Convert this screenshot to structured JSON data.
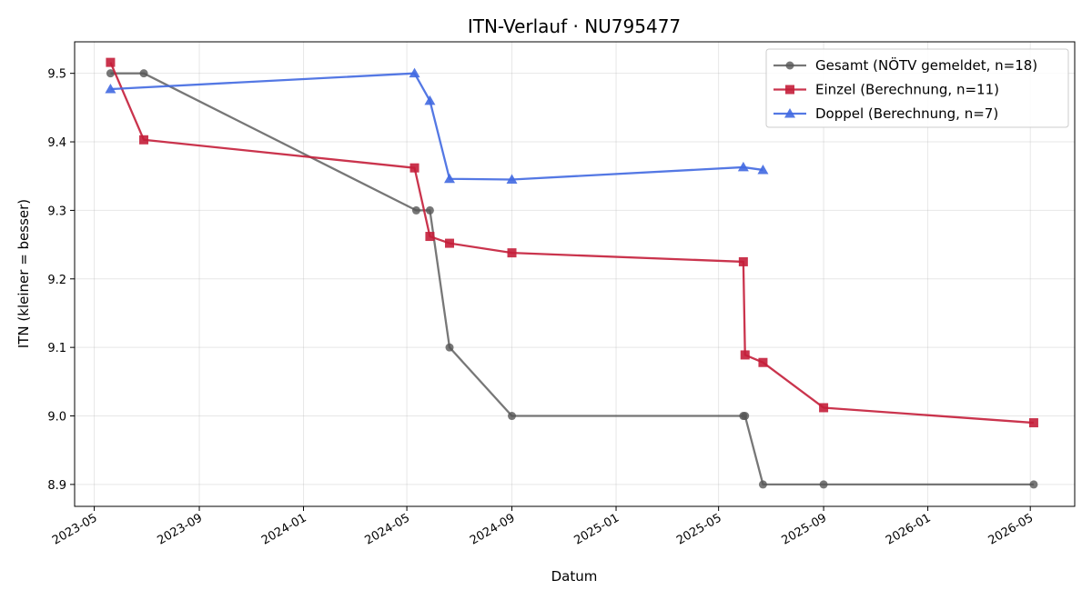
{
  "chart_data": {
    "type": "line",
    "title": "ITN-Verlauf · NU795477",
    "xlabel": "Datum",
    "ylabel": "ITN  (kleiner = besser)",
    "x_is_date": true,
    "xlim": [
      "2023-04-08",
      "2026-06-22"
    ],
    "ylim": [
      8.868,
      9.546
    ],
    "x_ticks": [
      "2023-05-01",
      "2023-09-01",
      "2024-01-01",
      "2024-05-01",
      "2024-09-01",
      "2025-01-01",
      "2025-05-01",
      "2025-09-01",
      "2026-01-01",
      "2026-05-01"
    ],
    "x_tick_labels": [
      "2023-05",
      "2023-09",
      "2024-01",
      "2024-05",
      "2024-09",
      "2025-01",
      "2025-05",
      "2025-09",
      "2026-01",
      "2026-05"
    ],
    "y_ticks": [
      8.9,
      9.0,
      9.1,
      9.2,
      9.3,
      9.4,
      9.5
    ],
    "y_tick_labels": [
      "8.9",
      "9.0",
      "9.1",
      "9.2",
      "9.3",
      "9.4",
      "9.5"
    ],
    "grid": true,
    "legend_position": "top-right",
    "series": [
      {
        "name": "Gesamt (NÖTV gemeldet, n=18)",
        "color": "#555555",
        "marker": "circle",
        "points": [
          {
            "x": "2023-05-20",
            "y": 9.5
          },
          {
            "x": "2023-06-28",
            "y": 9.5
          },
          {
            "x": "2024-05-12",
            "y": 9.3
          },
          {
            "x": "2024-05-28",
            "y": 9.3
          },
          {
            "x": "2024-06-20",
            "y": 9.1
          },
          {
            "x": "2024-09-01",
            "y": 9.0
          },
          {
            "x": "2025-05-30",
            "y": 9.0
          },
          {
            "x": "2025-06-01",
            "y": 9.0
          },
          {
            "x": "2025-06-22",
            "y": 8.9
          },
          {
            "x": "2025-09-01",
            "y": 8.9
          },
          {
            "x": "2026-05-05",
            "y": 8.9
          }
        ]
      },
      {
        "name": "Einzel (Berechnung, n=11)",
        "color": "#c41e3a",
        "marker": "square",
        "points": [
          {
            "x": "2023-05-20",
            "y": 9.516
          },
          {
            "x": "2023-06-28",
            "y": 9.403
          },
          {
            "x": "2024-05-10",
            "y": 9.362
          },
          {
            "x": "2024-05-28",
            "y": 9.262
          },
          {
            "x": "2024-06-20",
            "y": 9.252
          },
          {
            "x": "2024-09-01",
            "y": 9.238
          },
          {
            "x": "2025-05-30",
            "y": 9.225
          },
          {
            "x": "2025-06-01",
            "y": 9.089
          },
          {
            "x": "2025-06-22",
            "y": 9.078
          },
          {
            "x": "2025-09-01",
            "y": 9.012
          },
          {
            "x": "2026-05-05",
            "y": 8.99
          }
        ]
      },
      {
        "name": "Doppel (Berechnung, n=7)",
        "color": "#4169e1",
        "marker": "triangle",
        "points": [
          {
            "x": "2023-05-20",
            "y": 9.477
          },
          {
            "x": "2024-05-10",
            "y": 9.5
          },
          {
            "x": "2024-05-28",
            "y": 9.46
          },
          {
            "x": "2024-06-20",
            "y": 9.346
          },
          {
            "x": "2024-09-01",
            "y": 9.345
          },
          {
            "x": "2025-05-30",
            "y": 9.363
          },
          {
            "x": "2025-06-22",
            "y": 9.359
          }
        ]
      }
    ]
  }
}
